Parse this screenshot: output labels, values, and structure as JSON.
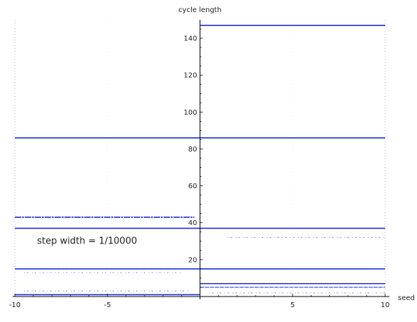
{
  "chart_data": {
    "type": "scatter",
    "title": "",
    "xlabel": "seed",
    "ylabel": "cycle length",
    "xlim": [
      -10,
      10
    ],
    "ylim": [
      0,
      150
    ],
    "x_ticks": [
      -10,
      -5,
      5,
      10
    ],
    "y_ticks": [
      20,
      40,
      60,
      80,
      100,
      120,
      140
    ],
    "grid": "vertical dotted",
    "annotation": "step width = 1/10000",
    "color": "#1f2fd4",
    "segments": [
      {
        "x0": 0,
        "x1": 10,
        "y": 147,
        "style": "solid"
      },
      {
        "x0": -10,
        "x1": 10,
        "y": 86,
        "style": "solid"
      },
      {
        "x0": -10,
        "x1": -0.3,
        "y": 43,
        "style": "dashed"
      },
      {
        "x0": -10,
        "x1": 10,
        "y": 37,
        "style": "solid"
      },
      {
        "x0": 1.5,
        "x1": 10,
        "y": 32,
        "style": "sparse"
      },
      {
        "x0": -10,
        "x1": 10,
        "y": 15,
        "style": "solid"
      },
      {
        "x0": -9.5,
        "x1": -1.0,
        "y": 13,
        "style": "sparse"
      },
      {
        "x0": 0,
        "x1": 10,
        "y": 7,
        "style": "solid"
      },
      {
        "x0": 0,
        "x1": 10,
        "y": 5,
        "style": "dense"
      },
      {
        "x0": -9.5,
        "x1": -0.5,
        "y": 3,
        "style": "sparse"
      },
      {
        "x0": 0.5,
        "x1": 10,
        "y": 2,
        "style": "sparse"
      },
      {
        "x0": -10,
        "x1": 0,
        "y": 1,
        "style": "solid"
      }
    ]
  }
}
